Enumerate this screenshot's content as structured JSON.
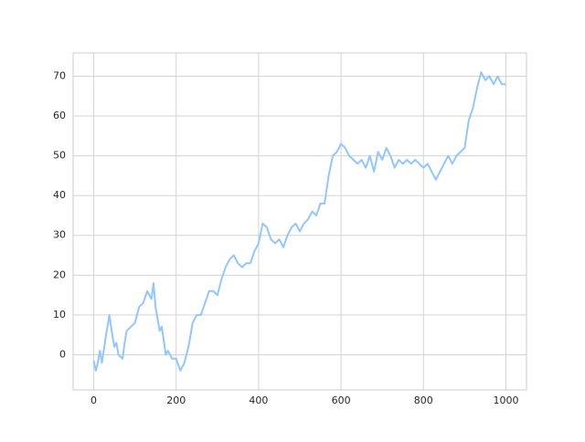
{
  "chart_data": {
    "type": "line",
    "x": [
      0,
      5,
      10,
      15,
      20,
      30,
      38,
      45,
      50,
      55,
      60,
      70,
      75,
      80,
      90,
      100,
      110,
      120,
      130,
      140,
      145,
      150,
      160,
      165,
      175,
      180,
      190,
      200,
      210,
      220,
      230,
      240,
      250,
      260,
      270,
      280,
      290,
      300,
      310,
      320,
      330,
      340,
      350,
      360,
      370,
      380,
      390,
      400,
      410,
      420,
      430,
      440,
      450,
      460,
      470,
      480,
      490,
      500,
      510,
      520,
      530,
      540,
      550,
      560,
      570,
      580,
      590,
      600,
      610,
      620,
      630,
      640,
      650,
      660,
      670,
      680,
      690,
      700,
      710,
      720,
      730,
      740,
      750,
      760,
      770,
      780,
      790,
      800,
      810,
      820,
      830,
      840,
      850,
      860,
      870,
      880,
      890,
      900,
      910,
      920,
      930,
      940,
      950,
      960,
      970,
      980,
      990,
      999
    ],
    "values": [
      -1.5,
      -4,
      -2,
      1,
      -2,
      5,
      10,
      5,
      2,
      3,
      0,
      -1,
      3,
      6,
      7,
      8,
      12,
      13,
      16,
      14,
      18,
      12,
      6,
      7,
      0,
      1,
      -1,
      -1,
      -4,
      -2,
      2,
      8,
      10,
      10,
      13,
      16,
      16,
      15,
      19,
      22,
      24,
      25,
      23,
      22,
      23,
      23,
      26,
      28,
      33,
      32,
      29,
      28,
      29,
      27,
      30,
      32,
      33,
      31,
      33,
      34,
      36,
      35,
      38,
      38,
      45,
      50,
      51,
      53,
      52,
      50,
      49,
      48,
      49,
      47,
      50,
      46,
      51,
      49,
      52,
      50,
      47,
      49,
      48,
      49,
      48,
      49,
      48,
      47,
      48,
      46,
      44,
      46,
      48,
      50,
      48,
      50,
      51,
      52,
      59,
      62,
      67,
      71,
      69,
      70,
      68,
      70,
      68,
      68
    ],
    "color": "#92c6ff",
    "xlim": [
      -50,
      1050
    ],
    "xticks": [
      0,
      200,
      400,
      600,
      800,
      1000
    ],
    "ylim": [
      -8.85,
      75.85
    ],
    "yticks": [
      0,
      10,
      20,
      30,
      40,
      50,
      60,
      70
    ],
    "grid": true
  }
}
